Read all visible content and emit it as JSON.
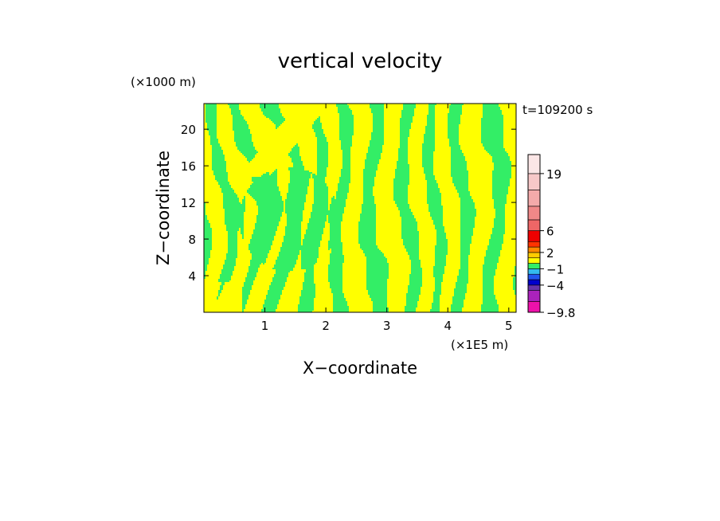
{
  "chart_data": {
    "type": "heatmap",
    "title": "vertical velocity",
    "xlabel": "X−coordinate",
    "ylabel": "Z−coordinate",
    "x_unit": "(×1E5 m)",
    "y_unit": "(×1000 m)",
    "time_label": "t=109200 s",
    "xlim": [
      0,
      5.12
    ],
    "ylim": [
      0,
      22.8
    ],
    "x_ticks": [
      "1",
      "2",
      "3",
      "4",
      "5"
    ],
    "y_ticks": [
      "4",
      "8",
      "12",
      "16",
      "20"
    ],
    "x_tick_values": [
      1,
      2,
      3,
      4,
      5
    ],
    "y_tick_values": [
      4,
      8,
      12,
      16,
      20
    ],
    "field_description_colors": {
      "positive_region": "#ffff00",
      "negative_region": "#33ee66"
    },
    "colorbar": {
      "levels": [
        -9.8,
        -7,
        -5,
        -4,
        -3,
        -2,
        -1,
        0,
        1,
        2,
        3,
        4,
        6,
        9,
        12,
        15,
        19,
        23
      ],
      "colors": [
        "#ee11aa",
        "#aa22bb",
        "#6633aa",
        "#0000cc",
        "#2255ee",
        "#33bbee",
        "#33ee66",
        "#ffff00",
        "#ffcc00",
        "#ff8800",
        "#ff3300",
        "#ee0000",
        "#ee6666",
        "#f08888",
        "#f4aaaa",
        "#f7c8c8",
        "#fbe6e6"
      ],
      "tick_labels": [
        "19",
        "6",
        "2",
        "−1",
        "−4",
        "−9.8"
      ],
      "tick_values": [
        19,
        6,
        2,
        -1,
        -4,
        -9.8
      ]
    }
  }
}
